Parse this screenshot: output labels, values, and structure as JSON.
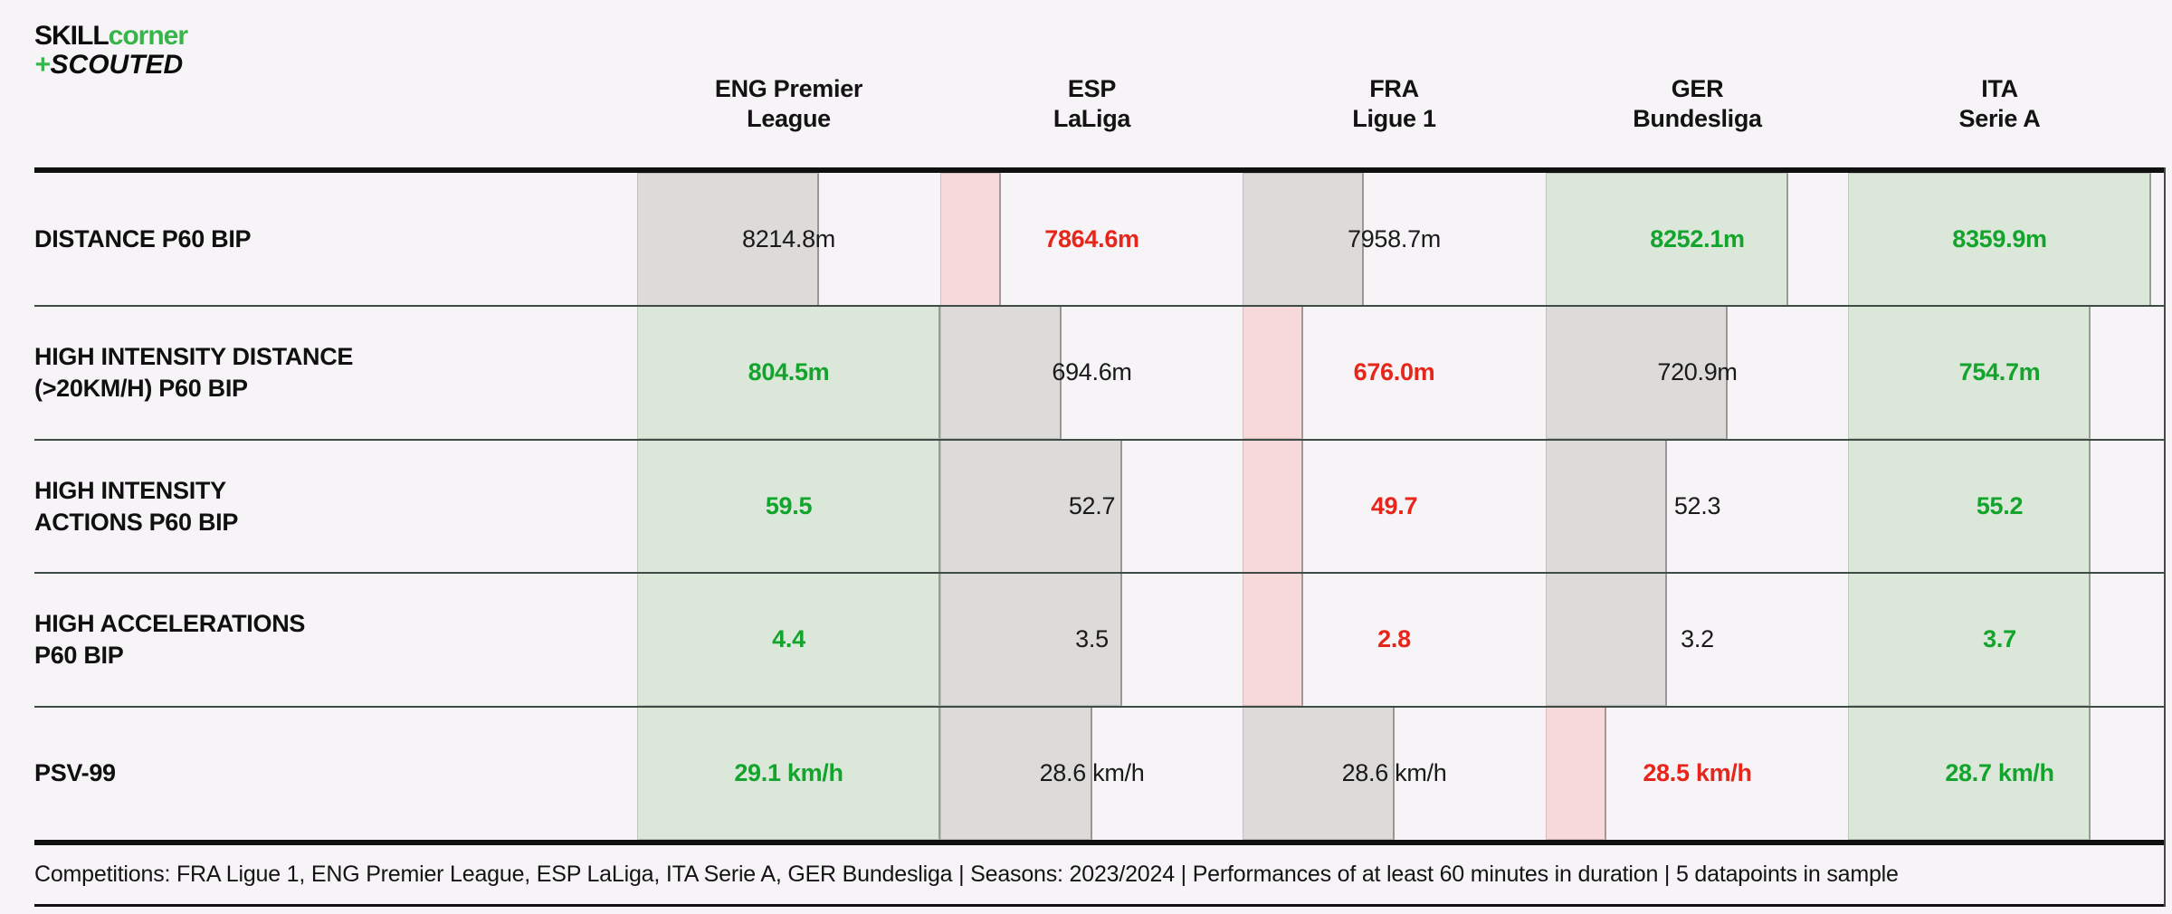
{
  "logo": {
    "skill": "SKILL",
    "corner": "corner",
    "plus": "+",
    "scouted": "SCOUTED"
  },
  "columns": [
    {
      "line1": "ENG Premier",
      "line2": "League"
    },
    {
      "line1": "ESP",
      "line2": "LaLiga"
    },
    {
      "line1": "FRA",
      "line2": "Ligue 1"
    },
    {
      "line1": "GER",
      "line2": "Bundesliga"
    },
    {
      "line1": "ITA",
      "line2": "Serie A"
    }
  ],
  "rows": [
    {
      "label_lines": [
        "DISTANCE P60 BIP"
      ],
      "cells": [
        {
          "value": "8214.8m",
          "status": "gray",
          "bar_pct": 60
        },
        {
          "value": "7864.6m",
          "status": "red",
          "bar_pct": 20
        },
        {
          "value": "7958.7m",
          "status": "gray",
          "bar_pct": 40
        },
        {
          "value": "8252.1m",
          "status": "green",
          "bar_pct": 80
        },
        {
          "value": "8359.9m",
          "status": "green",
          "bar_pct": 100
        }
      ]
    },
    {
      "label_lines": [
        "HIGH INTENSITY DISTANCE",
        "(>20KM/H) P60 BIP"
      ],
      "cells": [
        {
          "value": "804.5m",
          "status": "green",
          "bar_pct": 100
        },
        {
          "value": "694.6m",
          "status": "gray",
          "bar_pct": 40
        },
        {
          "value": "676.0m",
          "status": "red",
          "bar_pct": 20
        },
        {
          "value": "720.9m",
          "status": "gray",
          "bar_pct": 60
        },
        {
          "value": "754.7m",
          "status": "green",
          "bar_pct": 80
        }
      ]
    },
    {
      "label_lines": [
        "HIGH INTENSITY",
        "ACTIONS P60 BIP"
      ],
      "cells": [
        {
          "value": "59.5",
          "status": "green",
          "bar_pct": 100
        },
        {
          "value": "52.7",
          "status": "gray",
          "bar_pct": 60
        },
        {
          "value": "49.7",
          "status": "red",
          "bar_pct": 20
        },
        {
          "value": "52.3",
          "status": "gray",
          "bar_pct": 40
        },
        {
          "value": "55.2",
          "status": "green",
          "bar_pct": 80
        }
      ]
    },
    {
      "label_lines": [
        "HIGH ACCELERATIONS",
        "P60 BIP"
      ],
      "cells": [
        {
          "value": "4.4",
          "status": "green",
          "bar_pct": 100
        },
        {
          "value": "3.5",
          "status": "gray",
          "bar_pct": 60
        },
        {
          "value": "2.8",
          "status": "red",
          "bar_pct": 20
        },
        {
          "value": "3.2",
          "status": "gray",
          "bar_pct": 40
        },
        {
          "value": "3.7",
          "status": "green",
          "bar_pct": 80
        }
      ]
    },
    {
      "label_lines": [
        "PSV-99"
      ],
      "cells": [
        {
          "value": "29.1 km/h",
          "status": "green",
          "bar_pct": 100
        },
        {
          "value": "28.6 km/h",
          "status": "gray",
          "bar_pct": 50
        },
        {
          "value": "28.6 km/h",
          "status": "gray",
          "bar_pct": 50
        },
        {
          "value": "28.5 km/h",
          "status": "red",
          "bar_pct": 20
        },
        {
          "value": "28.7 km/h",
          "status": "green",
          "bar_pct": 80
        }
      ]
    }
  ],
  "footer": {
    "text": "Competitions: FRA Ligue 1, ENG Premier League, ESP LaLiga, ITA Serie A, GER Bundesliga | Seasons: 2023/2024 | Performances of at least 60 minutes in duration | 5 datapoints in sample"
  },
  "colors": {
    "page_bg": "#f6f4f6",
    "gray_bar": "#dcdbd9",
    "green_bar": "#dbe7d8",
    "pink_bar": "#f8d9d9",
    "green_text": "#12a42c",
    "red_text": "#e8251a",
    "separator": "#3e4c45",
    "line_dark": "#101010",
    "logo_green": "#36b649"
  },
  "chart_data": {
    "type": "table",
    "title": "League physical benchmarking: SkillCorner x Scouted",
    "categories": [
      "ENG Premier League",
      "ESP LaLiga",
      "FRA Ligue 1",
      "GER Bundesliga",
      "ITA Serie A"
    ],
    "series": [
      {
        "name": "Distance P60 BIP (m)",
        "values": [
          8214.8,
          7864.6,
          7958.7,
          8252.1,
          8359.9
        ]
      },
      {
        "name": "High Intensity Distance (>20km/h) P60 BIP (m)",
        "values": [
          804.5,
          694.6,
          676.0,
          720.9,
          754.7
        ]
      },
      {
        "name": "High Intensity Actions P60 BIP",
        "values": [
          59.5,
          52.7,
          49.7,
          52.3,
          55.2
        ]
      },
      {
        "name": "High Accelerations P60 BIP",
        "values": [
          4.4,
          3.5,
          2.8,
          3.2,
          3.7
        ]
      },
      {
        "name": "PSV-99 (km/h)",
        "values": [
          29.1,
          28.6,
          28.6,
          28.5,
          28.7
        ]
      }
    ],
    "encoding": "cell bar width = rank of league for that metric (20% worst to 100% best, ties averaged); green cells = top two leagues, red cell = worst league, grey = middle",
    "legend_position": "none",
    "grid": "horizontal row separators only"
  }
}
